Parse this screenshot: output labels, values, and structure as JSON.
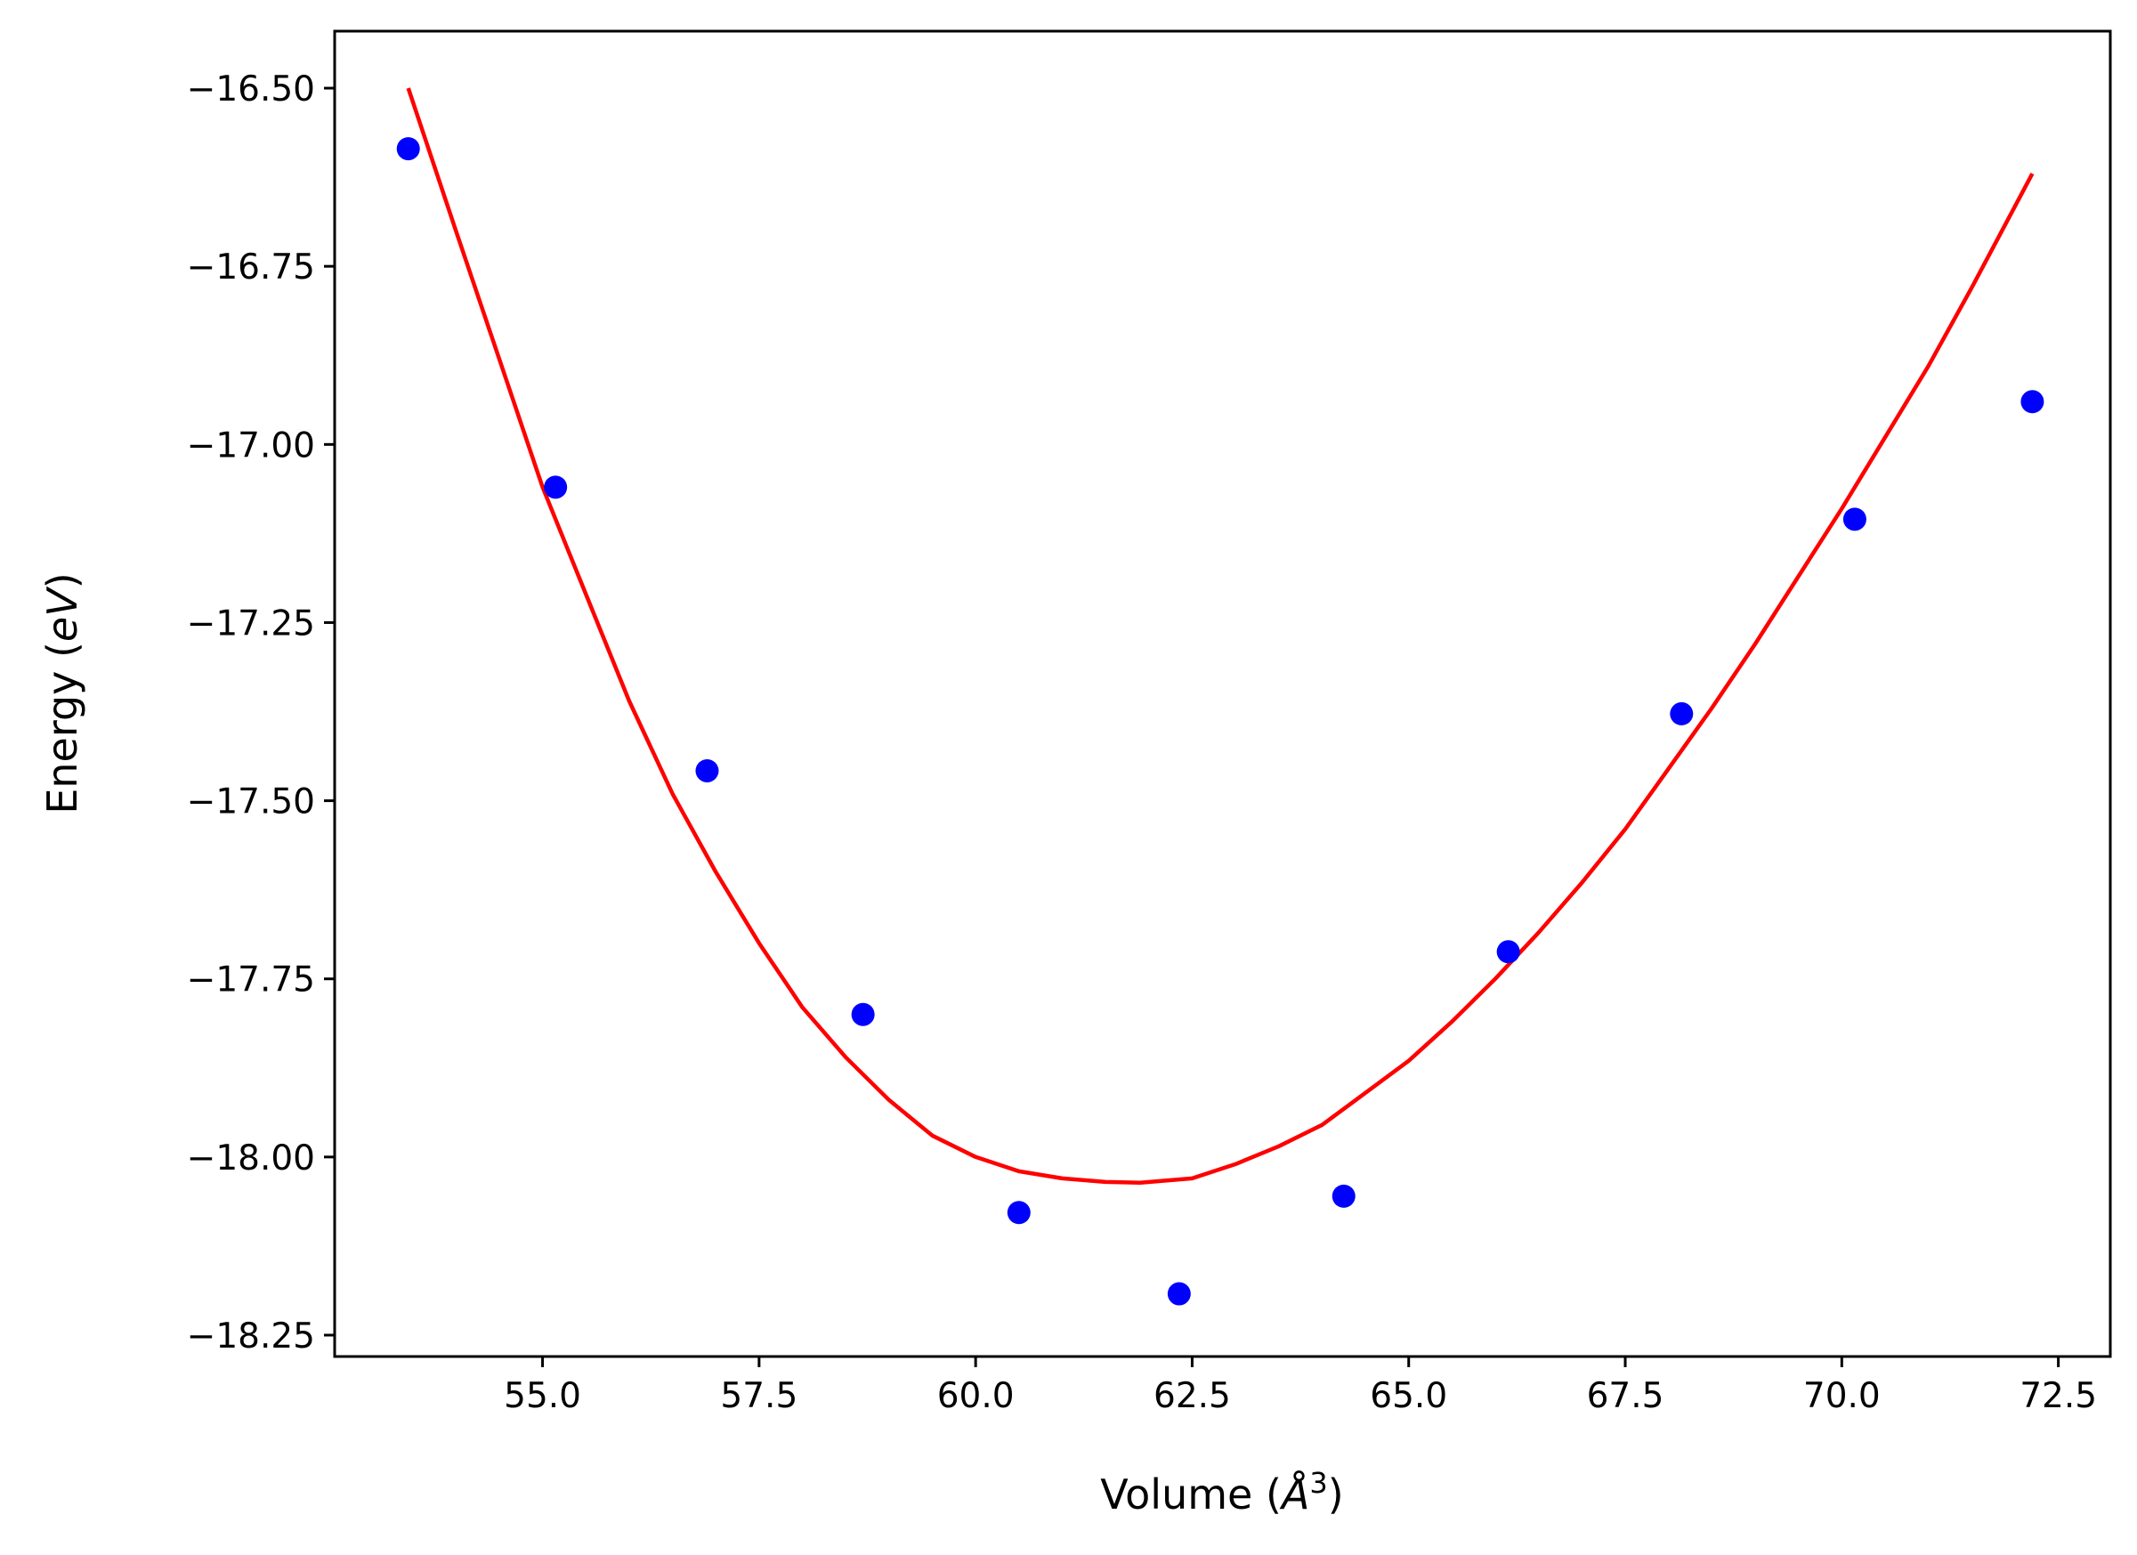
{
  "chart_data": {
    "type": "scatter",
    "title": "",
    "xlabel": "Volume",
    "xlabel_unit_symbol": "Å",
    "xlabel_unit_exponent": "3",
    "ylabel": "Energy",
    "ylabel_unit": "eV",
    "xlim": [
      52.6,
      73.1
    ],
    "ylim": [
      -18.28,
      -16.42
    ],
    "xticks": [
      55.0,
      57.5,
      60.0,
      62.5,
      65.0,
      67.5,
      70.0,
      72.5
    ],
    "xtick_labels": [
      "55.0",
      "57.5",
      "60.0",
      "62.5",
      "65.0",
      "67.5",
      "70.0",
      "72.5"
    ],
    "yticks": [
      -16.5,
      -16.75,
      -17.0,
      -17.25,
      -17.5,
      -17.75,
      -18.0,
      -18.25
    ],
    "ytick_labels": [
      "−16.50",
      "−16.75",
      "−17.00",
      "−17.25",
      "−17.50",
      "−17.75",
      "−18.00",
      "−18.25"
    ],
    "grid": false,
    "series": [
      {
        "kind": "scatter",
        "color": "#0000ff",
        "x": [
          53.45,
          55.15,
          56.9,
          58.7,
          60.5,
          62.35,
          64.25,
          66.15,
          68.15,
          70.15,
          72.2
        ],
        "y": [
          -16.585,
          -17.06,
          -17.458,
          -17.8,
          -18.078,
          -18.192,
          -18.055,
          -17.712,
          -17.378,
          -17.105,
          -16.94
        ]
      },
      {
        "kind": "line",
        "color": "#ff0000",
        "x": [
          53.45,
          54.0,
          54.5,
          55.0,
          55.5,
          56.0,
          56.5,
          57.0,
          57.5,
          58.0,
          58.5,
          59.0,
          59.5,
          60.0,
          60.5,
          61.0,
          61.5,
          61.9,
          62.5,
          63.0,
          63.5,
          64.0,
          64.5,
          65.0,
          65.5,
          66.0,
          66.5,
          67.0,
          67.5,
          68.0,
          68.5,
          69.0,
          69.5,
          70.0,
          70.5,
          71.0,
          71.5,
          72.2
        ],
        "y": [
          -16.5,
          -16.7,
          -16.88,
          -17.06,
          -17.21,
          -17.36,
          -17.49,
          -17.6,
          -17.7,
          -17.79,
          -17.86,
          -17.92,
          -17.97,
          -18.0,
          -18.02,
          -18.03,
          -18.035,
          -18.036,
          -18.03,
          -18.01,
          -17.985,
          -17.955,
          -17.91,
          -17.865,
          -17.81,
          -17.75,
          -17.685,
          -17.615,
          -17.54,
          -17.455,
          -17.37,
          -17.28,
          -17.185,
          -17.09,
          -16.99,
          -16.89,
          -16.78,
          -16.62
        ]
      }
    ]
  }
}
